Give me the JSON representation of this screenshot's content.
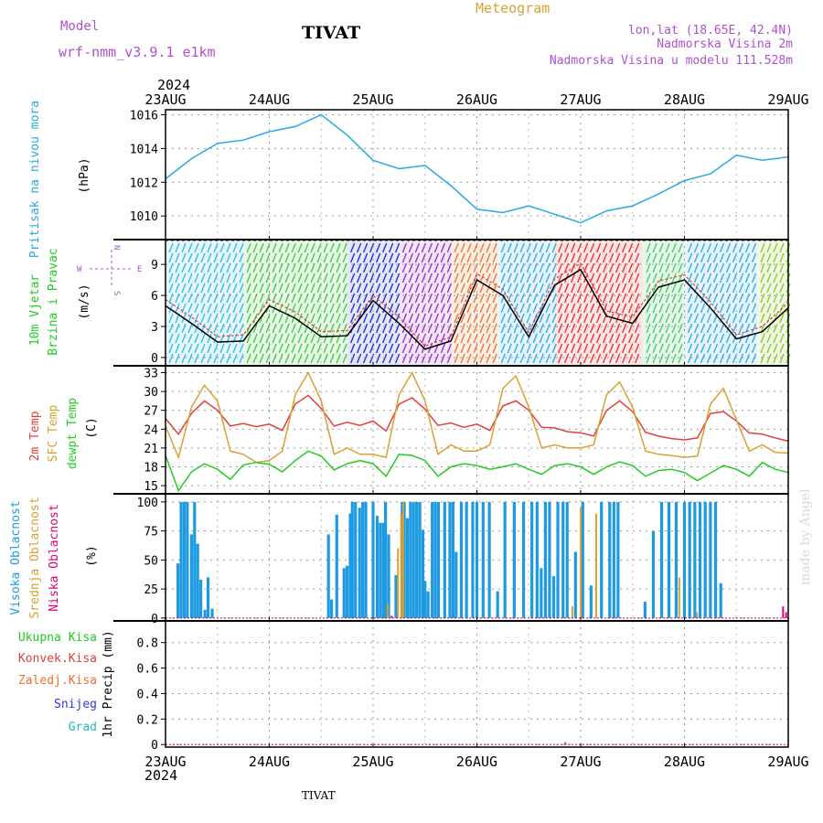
{
  "header": {
    "model_label": "Model",
    "model_value": "wrf-nmm_v3.9.1  e1km",
    "station": "TIVAT",
    "product": "Meteogram",
    "lonlat": "lon,lat (18.65E, 42.4N)",
    "elevation": "Nadmorska Visina 2m",
    "model_elevation": "Nadmorska Visina u modelu 111.528m",
    "year_top": "2024",
    "year_bottom": "2024",
    "footer_station": "TIVAT",
    "credit": "made by Angel"
  },
  "colors": {
    "pressure": "#2aa8e0",
    "wind_speed": "#000000",
    "gust": "#e0413a",
    "temp2m": "#e0413a",
    "sfc_temp": "#d9a034",
    "dewpoint": "#22cc22",
    "high_cloud": "#1e9be0",
    "mid_cloud": "#d9a034",
    "low_cloud": "#e0007a",
    "total_rain": "#22cc22",
    "conv_rain": "#e0413a",
    "frozen_rain": "#f07030",
    "snow": "#3333dd",
    "hail": "#22bbbb",
    "compass": "#b050d0"
  },
  "compass": {
    "north": "N",
    "west": "W",
    "east": "E",
    "south": "S"
  },
  "chart_data": [
    {
      "type": "line",
      "panel": "pressure",
      "ylabel": [
        "Pritisak na nivou mora",
        "(hPa)"
      ],
      "yticks": [
        1010,
        1012,
        1014,
        1016
      ],
      "ylim": [
        1008.6,
        1016.3
      ],
      "x_days": [
        0,
        0.25,
        0.5,
        0.75,
        1,
        1.25,
        1.5,
        1.75,
        2,
        2.25,
        2.5,
        2.75,
        3,
        3.25,
        3.5,
        3.75,
        4,
        4.25,
        4.5,
        4.75,
        5,
        5.25,
        5.5,
        5.75,
        6
      ],
      "series": [
        {
          "name": "Pritisak na nivou mora",
          "values": [
            1012.2,
            1013.4,
            1014.3,
            1014.5,
            1015.0,
            1015.3,
            1016.0,
            1014.8,
            1013.3,
            1012.8,
            1013.0,
            1011.8,
            1010.4,
            1010.2,
            1010.6,
            1010.1,
            1009.6,
            1010.3,
            1010.6,
            1011.3,
            1012.1,
            1012.5,
            1013.6,
            1013.3,
            1013.5
          ]
        }
      ],
      "grid": true
    },
    {
      "type": "line",
      "panel": "wind",
      "ylabel": [
        "10m Vjetar",
        "Brzina i Pravac",
        "(m/s)"
      ],
      "yticks": [
        0,
        3,
        6,
        9
      ],
      "ylim": [
        -0.8,
        11.4
      ],
      "x_days": [
        0,
        0.25,
        0.5,
        0.75,
        1,
        1.25,
        1.5,
        1.75,
        2,
        2.25,
        2.5,
        2.75,
        3,
        3.25,
        3.5,
        3.75,
        4,
        4.25,
        4.5,
        4.75,
        5,
        5.25,
        5.5,
        5.75,
        6
      ],
      "series": [
        {
          "name": "speed",
          "values": [
            5.0,
            3.3,
            1.5,
            1.6,
            5.0,
            3.8,
            2.0,
            2.1,
            5.5,
            3.3,
            0.8,
            1.6,
            7.5,
            6.0,
            2.0,
            7.0,
            8.5,
            4.0,
            3.3,
            6.8,
            7.5,
            4.8,
            1.8,
            2.5,
            4.8
          ]
        },
        {
          "name": "gust",
          "values": [
            5.6,
            3.9,
            2.0,
            2.2,
            5.6,
            4.4,
            2.5,
            2.6,
            6.0,
            3.9,
            1.1,
            2.0,
            8.1,
            6.6,
            2.4,
            7.6,
            9.1,
            4.5,
            3.9,
            7.4,
            8.0,
            5.4,
            2.2,
            3.0,
            5.3
          ]
        }
      ],
      "barb_bands": [
        {
          "from": 0.0,
          "to": 0.75,
          "color": "#33bbee"
        },
        {
          "from": 0.75,
          "to": 1.75,
          "color": "#44cc44"
        },
        {
          "from": 1.75,
          "to": 2.25,
          "color": "#2233cc"
        },
        {
          "from": 2.25,
          "to": 2.75,
          "color": "#9933cc"
        },
        {
          "from": 2.75,
          "to": 3.2,
          "color": "#ee7733"
        },
        {
          "from": 3.2,
          "to": 3.75,
          "color": "#33aaee"
        },
        {
          "from": 3.75,
          "to": 4.6,
          "color": "#ee3333"
        },
        {
          "from": 4.6,
          "to": 5.0,
          "color": "#44cc66"
        },
        {
          "from": 5.0,
          "to": 5.7,
          "color": "#33aaee"
        },
        {
          "from": 5.7,
          "to": 6.0,
          "color": "#88cc33"
        }
      ],
      "grid": true
    },
    {
      "type": "line",
      "panel": "temperature",
      "ylabel": [
        "2m Temp",
        "SFC Temp",
        "dewpt Temp",
        "(C)"
      ],
      "yticks": [
        15,
        18,
        21,
        24,
        27,
        30,
        33
      ],
      "ylim": [
        13.7,
        34.1
      ],
      "x_days": [
        0,
        0.125,
        0.25,
        0.375,
        0.5,
        0.625,
        0.75,
        0.875,
        1,
        1.125,
        1.25,
        1.375,
        1.5,
        1.625,
        1.75,
        1.875,
        2,
        2.125,
        2.25,
        2.375,
        2.5,
        2.625,
        2.75,
        2.875,
        3,
        3.125,
        3.25,
        3.375,
        3.5,
        3.625,
        3.75,
        3.875,
        4,
        4.125,
        4.25,
        4.375,
        4.5,
        4.625,
        4.75,
        4.875,
        5,
        5.125,
        5.25,
        5.375,
        5.5,
        5.625,
        5.75,
        5.875,
        6
      ],
      "series": [
        {
          "name": "2m Temp",
          "values": [
            25.7,
            23.2,
            26.5,
            28.5,
            27.0,
            24.5,
            24.9,
            24.4,
            24.8,
            23.8,
            28.0,
            29.4,
            27.3,
            24.5,
            25.1,
            24.6,
            25.3,
            23.7,
            28.0,
            29.0,
            27.2,
            24.6,
            25.0,
            24.3,
            24.8,
            23.8,
            27.7,
            28.5,
            27.0,
            24.3,
            24.2,
            23.6,
            23.4,
            22.9,
            27.0,
            28.5,
            26.8,
            23.5,
            22.9,
            22.5,
            22.3,
            22.6,
            26.5,
            26.8,
            25.3,
            23.4,
            23.2,
            22.6,
            22.1
          ]
        },
        {
          "name": "SFC Temp",
          "values": [
            24.5,
            19.5,
            27.5,
            31.0,
            28.5,
            20.5,
            20.0,
            18.7,
            19.0,
            20.5,
            29.5,
            33.0,
            28.5,
            20.0,
            21.0,
            20.0,
            20.0,
            19.5,
            29.5,
            33.0,
            28.5,
            20.0,
            21.5,
            20.5,
            20.5,
            21.5,
            30.5,
            32.5,
            27.5,
            21.0,
            21.5,
            21.0,
            21.0,
            21.5,
            29.5,
            31.5,
            27.5,
            20.5,
            20.0,
            19.8,
            19.5,
            19.7,
            28.0,
            30.5,
            25.5,
            20.5,
            21.5,
            20.3,
            20.2
          ]
        },
        {
          "name": "dewpt Temp",
          "values": [
            19.8,
            14.2,
            17.2,
            18.5,
            17.6,
            16.0,
            18.3,
            18.7,
            18.4,
            17.2,
            19.0,
            20.5,
            19.7,
            17.5,
            18.5,
            19.0,
            18.5,
            16.5,
            20.0,
            19.8,
            19.0,
            16.5,
            18.0,
            18.5,
            18.2,
            17.6,
            18.0,
            18.5,
            17.6,
            16.8,
            18.2,
            18.5,
            18.0,
            16.8,
            18.0,
            18.8,
            18.2,
            16.5,
            17.4,
            17.6,
            17.1,
            15.8,
            17.0,
            18.2,
            17.6,
            16.5,
            18.7,
            17.6,
            17.1
          ]
        }
      ],
      "grid": true
    },
    {
      "type": "bar",
      "panel": "clouds",
      "ylabel": [
        "Visoka Oblacnost",
        "Srednja Oblacnost",
        "Niska Oblacnost",
        "(%)"
      ],
      "yticks": [
        0,
        25,
        50,
        75,
        100
      ],
      "ylim": [
        -2.5,
        107
      ],
      "series": [
        {
          "name": "Visoka Oblacnost",
          "x_days": [
            0.12,
            0.15,
            0.18,
            0.21,
            0.25,
            0.28,
            0.31,
            0.34,
            0.38,
            0.41,
            0.45,
            0.48,
            1.57,
            1.6,
            1.65,
            1.72,
            1.75,
            1.78,
            1.8,
            1.83,
            1.87,
            1.9,
            1.93,
            2.0,
            2.04,
            2.07,
            2.1,
            2.12,
            2.15,
            2.19,
            2.22,
            2.25,
            2.28,
            2.3,
            2.33,
            2.36,
            2.39,
            2.42,
            2.45,
            2.48,
            2.5,
            2.53,
            2.57,
            2.6,
            2.63,
            2.66,
            2.69,
            2.74,
            2.77,
            2.8,
            2.85,
            2.9,
            2.96,
            3.0,
            3.06,
            3.12,
            3.2,
            3.27,
            3.36,
            3.45,
            3.53,
            3.58,
            3.62,
            3.66,
            3.7,
            3.74,
            3.78,
            3.83,
            3.87,
            3.95,
            4.02,
            4.1,
            4.2,
            4.28,
            4.32,
            4.36,
            4.4,
            4.44,
            4.48,
            4.52,
            4.56,
            4.62,
            4.7,
            4.78,
            4.85,
            4.92,
            5.0,
            5.05,
            5.1,
            5.15,
            5.2,
            5.25,
            5.3,
            5.35,
            5.4
          ],
          "values": [
            47,
            100,
            100,
            100,
            72,
            100,
            64,
            33,
            7,
            35,
            8,
            0,
            72,
            16,
            89,
            43,
            45,
            90,
            100,
            100,
            95,
            100,
            100,
            100,
            88,
            82,
            82,
            100,
            72,
            0,
            37,
            0,
            100,
            100,
            86,
            100,
            100,
            100,
            100,
            76,
            32,
            23,
            100,
            100,
            100,
            0,
            100,
            100,
            100,
            57,
            100,
            100,
            100,
            100,
            100,
            100,
            23,
            100,
            100,
            100,
            100,
            100,
            43,
            100,
            100,
            36,
            100,
            100,
            100,
            57,
            100,
            28,
            100,
            100,
            100,
            100,
            0,
            0,
            0,
            0,
            0,
            14,
            75,
            100,
            100,
            100,
            100,
            100,
            100,
            100,
            100,
            100,
            100,
            30,
            0
          ]
        },
        {
          "name": "Srednja Oblacnost",
          "x_days": [
            2.14,
            2.24,
            2.27,
            2.29,
            3.92,
            4.0,
            4.15,
            4.95,
            5.12
          ],
          "values": [
            12,
            60,
            90,
            100,
            10,
            95,
            90,
            35,
            5
          ]
        },
        {
          "name": "Niska Oblacnost",
          "x_days": [
            2.18,
            5.95,
            5.98
          ],
          "values": [
            2,
            10,
            5
          ]
        }
      ],
      "grid": true
    },
    {
      "type": "bar",
      "panel": "precipitation",
      "ylabel": [
        "1hr Precip (mm)"
      ],
      "legend": [
        "Ukupna Kisa",
        "Konvek.Kisa",
        "Zaledj.Kisa",
        "Snijeg",
        "Grad"
      ],
      "yticks": [
        0,
        0.2,
        0.4,
        0.6,
        0.8
      ],
      "ylim": [
        -0.02,
        0.97
      ],
      "series": [
        {
          "name": "Ukupna Kisa",
          "x_days": [
            3.85
          ],
          "values": [
            0.02
          ]
        },
        {
          "name": "Zaledj.Kisa",
          "x_days": [
            3.86
          ],
          "values": [
            0.01
          ]
        }
      ],
      "grid": true
    }
  ],
  "x_axis": {
    "top_labels": [
      "23AUG",
      "24AUG",
      "25AUG",
      "26AUG",
      "27AUG",
      "28AUG",
      "29AUG"
    ],
    "bottom_labels": [
      "23AUG",
      "24AUG",
      "25AUG",
      "26AUG",
      "27AUG",
      "28AUG",
      "29AUG"
    ]
  }
}
